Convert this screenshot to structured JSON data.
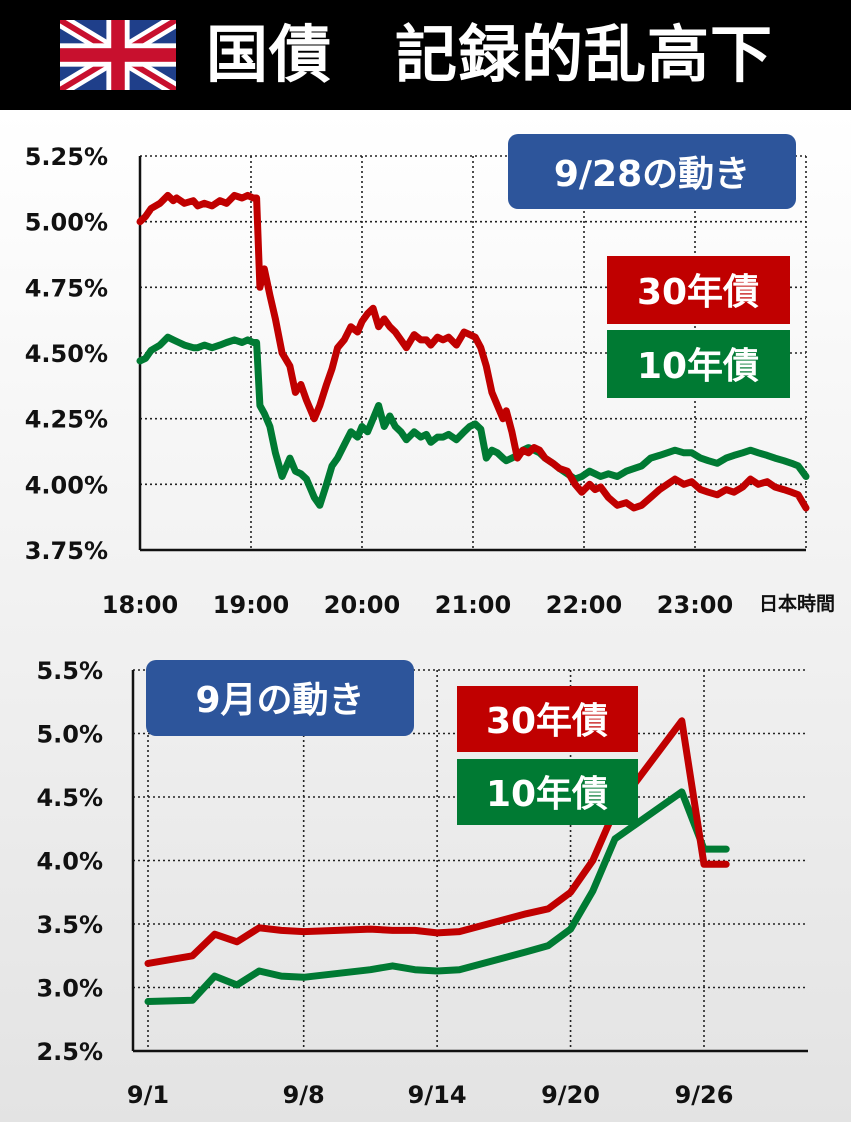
{
  "header": {
    "title": "国債　記録的乱高下",
    "flag_icon": "uk-flag-icon"
  },
  "colors": {
    "series_30y": "#c00000",
    "series_10y": "#007a33",
    "badge": "#2d559b",
    "header_bg": "#000000"
  },
  "chart_data": [
    {
      "type": "line",
      "badge": "9/28の動き",
      "x_axis_note": "日本時間",
      "x_ticks": [
        "18:00",
        "19:00",
        "20:00",
        "21:00",
        "22:00",
        "23:00"
      ],
      "x_range": [
        18.0,
        24.0
      ],
      "y_ticks": [
        "5.25%",
        "5.00%",
        "4.75%",
        "4.50%",
        "4.25%",
        "4.00%",
        "3.75%"
      ],
      "ylim": [
        3.75,
        5.25
      ],
      "grid": true,
      "legend_placement": "top-right",
      "series": [
        {
          "name": "30年債",
          "x": [
            18.0,
            18.05,
            18.1,
            18.18,
            18.25,
            18.3,
            18.33,
            18.4,
            18.48,
            18.52,
            18.58,
            18.65,
            18.72,
            18.78,
            18.85,
            18.92,
            18.97,
            19.02,
            19.05,
            19.08,
            19.12,
            19.17,
            19.22,
            19.28,
            19.35,
            19.4,
            19.45,
            19.5,
            19.57,
            19.62,
            19.68,
            19.73,
            19.78,
            19.84,
            19.9,
            19.96,
            20.0,
            20.05,
            20.1,
            20.15,
            20.2,
            20.25,
            20.3,
            20.35,
            20.4,
            20.47,
            20.53,
            20.58,
            20.62,
            20.68,
            20.73,
            20.78,
            20.85,
            20.92,
            20.97,
            21.02,
            21.07,
            21.12,
            21.17,
            21.22,
            21.27,
            21.3,
            21.35,
            21.4,
            21.45,
            21.5,
            21.55,
            21.6,
            21.65,
            21.72,
            21.78,
            21.85,
            21.92,
            21.98,
            22.05,
            22.1,
            22.15,
            22.22,
            22.3,
            22.38,
            22.45,
            22.52,
            22.6,
            22.68,
            22.75,
            22.82,
            22.9,
            22.97,
            23.05,
            23.12,
            23.2,
            23.28,
            23.35,
            23.43,
            23.5,
            23.57,
            23.65,
            23.72,
            23.8,
            23.87,
            23.93,
            24.0
          ],
          "values": [
            5.0,
            5.02,
            5.05,
            5.07,
            5.1,
            5.08,
            5.09,
            5.07,
            5.08,
            5.06,
            5.07,
            5.06,
            5.08,
            5.07,
            5.1,
            5.09,
            5.1,
            5.09,
            5.09,
            4.75,
            4.82,
            4.72,
            4.63,
            4.5,
            4.45,
            4.35,
            4.38,
            4.32,
            4.25,
            4.3,
            4.38,
            4.44,
            4.52,
            4.55,
            4.6,
            4.58,
            4.62,
            4.65,
            4.67,
            4.6,
            4.63,
            4.6,
            4.58,
            4.55,
            4.52,
            4.57,
            4.55,
            4.55,
            4.53,
            4.56,
            4.55,
            4.56,
            4.53,
            4.58,
            4.57,
            4.56,
            4.52,
            4.45,
            4.35,
            4.3,
            4.25,
            4.28,
            4.2,
            4.1,
            4.13,
            4.12,
            4.14,
            4.13,
            4.1,
            4.08,
            4.06,
            4.05,
            4.0,
            3.97,
            4.0,
            3.98,
            3.99,
            3.95,
            3.92,
            3.93,
            3.91,
            3.92,
            3.95,
            3.98,
            4.0,
            4.02,
            4.0,
            4.01,
            3.98,
            3.97,
            3.96,
            3.98,
            3.97,
            3.99,
            4.02,
            4.0,
            4.01,
            3.99,
            3.98,
            3.97,
            3.96,
            3.91
          ]
        },
        {
          "name": "10年債",
          "x": [
            18.0,
            18.05,
            18.1,
            18.18,
            18.25,
            18.3,
            18.35,
            18.4,
            18.48,
            18.52,
            18.58,
            18.65,
            18.72,
            18.78,
            18.85,
            18.92,
            18.97,
            19.02,
            19.05,
            19.08,
            19.12,
            19.17,
            19.22,
            19.28,
            19.35,
            19.4,
            19.45,
            19.5,
            19.57,
            19.62,
            19.68,
            19.73,
            19.78,
            19.84,
            19.9,
            19.96,
            20.0,
            20.05,
            20.1,
            20.15,
            20.2,
            20.25,
            20.3,
            20.35,
            20.4,
            20.47,
            20.53,
            20.58,
            20.62,
            20.68,
            20.73,
            20.78,
            20.85,
            20.92,
            20.97,
            21.02,
            21.07,
            21.12,
            21.17,
            21.22,
            21.27,
            21.3,
            21.35,
            21.4,
            21.45,
            21.5,
            21.55,
            21.6,
            21.65,
            21.72,
            21.78,
            21.85,
            21.92,
            21.98,
            22.05,
            22.1,
            22.15,
            22.22,
            22.3,
            22.38,
            22.45,
            22.52,
            22.6,
            22.68,
            22.75,
            22.82,
            22.9,
            22.97,
            23.05,
            23.12,
            23.2,
            23.28,
            23.35,
            23.43,
            23.5,
            23.57,
            23.65,
            23.72,
            23.8,
            23.87,
            23.93,
            24.0
          ],
          "values": [
            4.47,
            4.48,
            4.51,
            4.53,
            4.56,
            4.55,
            4.54,
            4.53,
            4.52,
            4.52,
            4.53,
            4.52,
            4.53,
            4.54,
            4.55,
            4.54,
            4.55,
            4.54,
            4.54,
            4.3,
            4.27,
            4.22,
            4.12,
            4.03,
            4.1,
            4.05,
            4.04,
            4.02,
            3.95,
            3.92,
            4.0,
            4.07,
            4.1,
            4.15,
            4.2,
            4.18,
            4.22,
            4.2,
            4.25,
            4.3,
            4.22,
            4.26,
            4.22,
            4.2,
            4.17,
            4.2,
            4.18,
            4.19,
            4.16,
            4.18,
            4.18,
            4.19,
            4.17,
            4.2,
            4.22,
            4.23,
            4.21,
            4.1,
            4.13,
            4.12,
            4.1,
            4.09,
            4.1,
            4.11,
            4.13,
            4.14,
            4.13,
            4.12,
            4.1,
            4.08,
            4.06,
            4.04,
            4.02,
            4.03,
            4.05,
            4.04,
            4.03,
            4.04,
            4.03,
            4.05,
            4.06,
            4.07,
            4.1,
            4.11,
            4.12,
            4.13,
            4.12,
            4.12,
            4.1,
            4.09,
            4.08,
            4.1,
            4.11,
            4.12,
            4.13,
            4.12,
            4.11,
            4.1,
            4.09,
            4.08,
            4.07,
            4.03
          ]
        }
      ]
    },
    {
      "type": "line",
      "badge": "9月の動き",
      "x_ticks": [
        "9/1",
        "9/8",
        "9/14",
        "9/20",
        "9/26"
      ],
      "x_tick_positions": [
        1,
        8,
        14,
        20,
        26
      ],
      "x_range": [
        1,
        30
      ],
      "y_ticks": [
        "5.5%",
        "5.0%",
        "4.5%",
        "4.0%",
        "3.5%",
        "3.0%",
        "2.5%"
      ],
      "ylim": [
        2.5,
        5.5
      ],
      "grid": true,
      "legend_placement": "top-center",
      "series": [
        {
          "name": "30年債",
          "x": [
            1,
            3,
            4,
            5,
            6,
            7,
            8,
            11,
            12,
            13,
            14,
            15,
            18,
            19,
            20,
            21,
            22,
            25,
            26,
            27,
            28,
            29
          ],
          "values": [
            3.19,
            3.25,
            3.42,
            3.36,
            3.47,
            3.45,
            3.44,
            3.46,
            3.45,
            3.45,
            3.43,
            3.44,
            3.58,
            3.62,
            3.75,
            4.0,
            4.4,
            5.1,
            3.97,
            3.97,
            3.97,
            3.97
          ]
        },
        {
          "name": "10年債",
          "x": [
            1,
            3,
            4,
            5,
            6,
            7,
            8,
            11,
            12,
            13,
            14,
            15,
            18,
            19,
            20,
            21,
            22,
            25,
            26,
            27,
            28,
            29
          ],
          "values": [
            2.89,
            2.9,
            3.09,
            3.02,
            3.13,
            3.09,
            3.08,
            3.14,
            3.17,
            3.14,
            3.13,
            3.14,
            3.28,
            3.33,
            3.46,
            3.76,
            4.17,
            4.54,
            4.09,
            4.09,
            4.09,
            4.09
          ]
        }
      ]
    }
  ]
}
